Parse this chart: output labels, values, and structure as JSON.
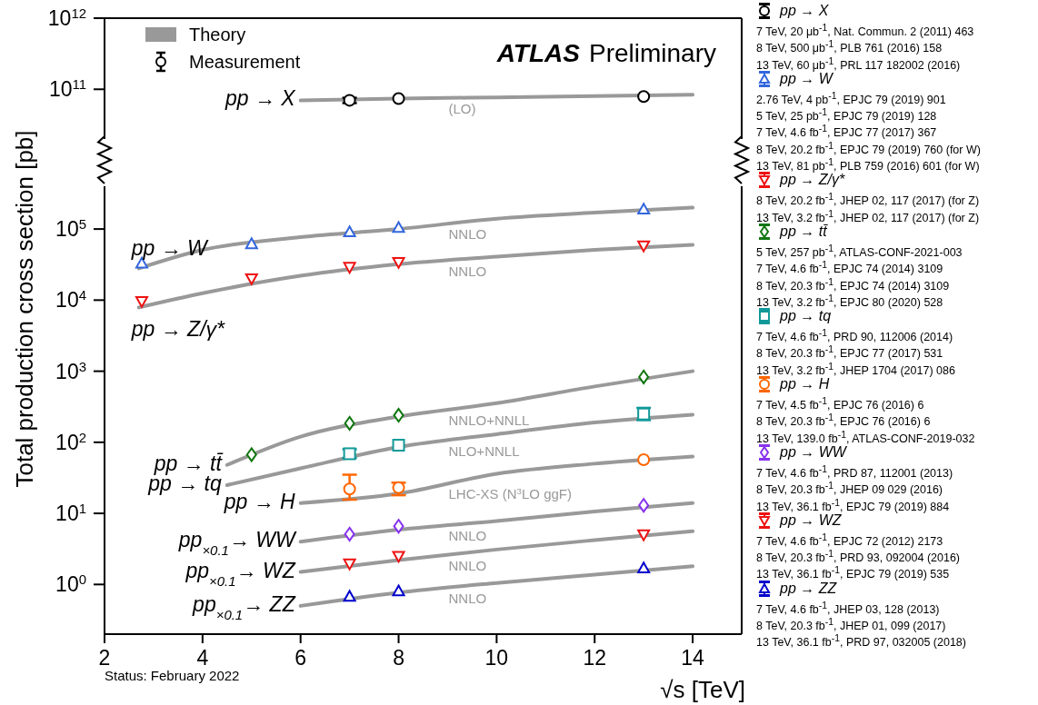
{
  "chart_data": [
    {
      "type": "line",
      "title": "ATLAS Preliminary",
      "xlim": [
        2,
        15
      ],
      "xticks": [
        2,
        4,
        6,
        8,
        10,
        12,
        14
      ],
      "ylim": [
        20000000000,
        1000000000000
      ],
      "yticks": [
        {
          "value": 100000000000,
          "label": "10$^{11}$"
        },
        {
          "value": 1000000000000,
          "label": "10$^{12}$"
        }
      ],
      "log": true,
      "tick_labels": "y",
      "legend": "right",
      "annotations": [
        "pp → X",
        "(LO)",
        "Theory",
        "Measurement"
      ],
      "series": [
        {
          "color": "#999999",
          "x": [
            6,
            8,
            10,
            12,
            14
          ],
          "values": [
            70000000000,
            74000000000,
            77000000000,
            80000000000,
            84000000000
          ]
        },
        {
          "type": "scatter",
          "name": "pp → X",
          "color": "#000000",
          "marker": "circle",
          "x": [
            7,
            8,
            13
          ],
          "values": [
            70000000000,
            74000000000,
            79000000000
          ],
          "errors": [
            [
              64000000000,
              76000000000
            ],
            null,
            null
          ]
        }
      ]
    },
    {
      "type": "line",
      "xlabel": "√s  [TeV]",
      "ylabel": "Total production cross section  [pb]",
      "xlim": [
        2,
        15
      ],
      "xticks": [
        2,
        4,
        6,
        8,
        10,
        12,
        14
      ],
      "ylim": [
        0.2,
        400000
      ],
      "yticks": [
        {
          "value": 1,
          "label": "10$^{0}$"
        },
        {
          "value": 10,
          "label": "10$^{1}$"
        },
        {
          "value": 100,
          "label": "10$^{2}$"
        },
        {
          "value": 1000,
          "label": "10$^{3}$"
        },
        {
          "value": 10000,
          "label": "10$^{4}$"
        },
        {
          "value": 100000,
          "label": "10$^{5}$"
        }
      ],
      "log": true,
      "legend": "right",
      "annotations": [
        "pp → W",
        "NNLO",
        "pp → Z/γ*",
        "NNLO",
        "pp → tt̄",
        "NNLO+NNLL",
        "pp → tq",
        "NLO+NNLL",
        "pp → H",
        "LHC-XS (N$^{3}$LO ggF)",
        "pp$_{×0.1}$→ WW",
        "NNLO",
        "pp$_{×0.1}$→ WZ",
        "NNLO",
        "pp$_{×0.1}$→ ZZ",
        "NNLO",
        "Status: February 2022"
      ],
      "series": [
        {
          "color": "#999999",
          "x": [
            2.7,
            4,
            6,
            8,
            10,
            12,
            14
          ],
          "values": [
            28000,
            51000,
            77000,
            100000,
            140000,
            170000,
            200000
          ]
        },
        {
          "type": "scatter",
          "name": "pp → W",
          "color": "#3366dd",
          "marker": "triangle",
          "x": [
            2.76,
            5,
            7,
            8,
            13
          ],
          "values": [
            33000,
            62000,
            91000,
            105000,
            190000
          ]
        },
        {
          "color": "#999999",
          "x": [
            2.7,
            4,
            6,
            8,
            10,
            12,
            14
          ],
          "values": [
            7900,
            12500,
            22000,
            32000,
            41000,
            51000,
            60000
          ]
        },
        {
          "type": "scatter",
          "name": "pp → Z/γ*",
          "color": "#ee1111",
          "marker": "triangle-down",
          "x": [
            2.76,
            5,
            7,
            8,
            13
          ],
          "values": [
            9600,
            20000,
            29000,
            34000,
            58000
          ]
        },
        {
          "color": "#999999",
          "x": [
            4.5,
            6,
            8,
            10,
            12,
            14
          ],
          "values": [
            48,
            120,
            230,
            355,
            610,
            1000
          ]
        },
        {
          "type": "scatter",
          "name": "pp → tt̄",
          "color": "#117711",
          "marker": "diamond",
          "x": [
            5,
            7,
            8,
            13
          ],
          "values": [
            67,
            185,
            240,
            830
          ]
        },
        {
          "color": "#999999",
          "x": [
            4.5,
            6,
            8,
            10,
            12,
            14
          ],
          "values": [
            25,
            43,
            86,
            130,
            190,
            245
          ]
        },
        {
          "type": "scatter",
          "name": "pp → tq",
          "color": "#119999",
          "marker": "square",
          "x": [
            7,
            8,
            13
          ],
          "values": [
            69,
            91,
            250
          ],
          "errors": [
            [
              60,
              80
            ],
            null,
            [
              205,
              305
            ]
          ]
        },
        {
          "color": "#999999",
          "x": [
            6,
            8,
            10,
            12,
            14
          ],
          "values": [
            14,
            19,
            36,
            50,
            63
          ]
        },
        {
          "type": "scatter",
          "name": "pp → H",
          "color": "#ff6600",
          "marker": "circle",
          "x": [
            7,
            8,
            13
          ],
          "values": [
            22,
            23,
            57
          ],
          "errors": [
            [
              15.6,
              35
            ],
            [
              18,
              27
            ],
            null
          ]
        },
        {
          "color": "#999999",
          "x": [
            6,
            8,
            10,
            12,
            14
          ],
          "values": [
            4.0,
            5.9,
            7.8,
            10.6,
            14
          ]
        },
        {
          "type": "scatter",
          "name": "pp → WW",
          "color": "#8833ee",
          "marker": "diamond",
          "x": [
            7,
            8,
            13
          ],
          "values": [
            5.1,
            6.6,
            13
          ]
        },
        {
          "color": "#999999",
          "x": [
            6,
            8,
            10,
            12,
            14
          ],
          "values": [
            1.5,
            2.2,
            3.1,
            4.2,
            5.6
          ]
        },
        {
          "type": "scatter",
          "name": "pp → WZ",
          "color": "#ee1111",
          "marker": "triangle-down",
          "x": [
            7,
            8,
            13
          ],
          "values": [
            1.95,
            2.5,
            5.0
          ]
        },
        {
          "color": "#999999",
          "x": [
            6,
            8,
            10,
            12,
            14
          ],
          "values": [
            0.5,
            0.77,
            1.05,
            1.37,
            1.8
          ]
        },
        {
          "type": "scatter",
          "name": "pp → ZZ",
          "color": "#0000cc",
          "marker": "triangle",
          "x": [
            7,
            8,
            13
          ],
          "values": [
            0.68,
            0.81,
            1.7
          ]
        }
      ]
    },
    {
      "type": "other",
      "annotations": [
        "7 TeV, 20 μb$^{-1}$, Nat. Commun. 2 (2011) 463",
        "8 TeV, 500 μb$^{-1}$, PLB 761 (2016) 158",
        "13 TeV, 60 μb$^{-1}$, PRL 117 182002 (2016)"
      ]
    },
    {
      "type": "other",
      "annotations": [
        "2.76 TeV, 4 pb$^{-1}$, EPJC 79 (2019) 901",
        "5 TeV, 25 pb$^{-1}$, EPJC 79 (2019) 128",
        "7 TeV, 4.6 fb$^{-1}$, EPJC 77 (2017) 367",
        "8 TeV, 20.2 fb$^{-1}$, EPJC 79 (2019) 760 (for W)",
        "13 TeV, 81 pb$^{-1}$, PLB 759 (2016) 601 (for W)"
      ]
    },
    {
      "type": "other",
      "annotations": [
        "8 TeV, 20.2 fb$^{-1}$, JHEP 02, 117 (2017) (for Z)",
        "13 TeV, 3.2 fb$^{-1}$, JHEP 02, 117 (2017) (for Z)"
      ]
    },
    {
      "type": "other",
      "annotations": [
        "5 TeV, 257 pb$^{-1}$, ATLAS-CONF-2021-003",
        "7 TeV, 4.6 fb$^{-1}$, EPJC 74 (2014) 3109",
        "8 TeV, 20.3 fb$^{-1}$, EPJC 74 (2014) 3109",
        "13 TeV, 3.2 fb$^{-1}$, EPJC 80 (2020) 528"
      ]
    },
    {
      "type": "other",
      "annotations": [
        "7 TeV, 4.6 fb$^{-1}$, PRD 90, 112006 (2014)",
        "8 TeV, 20.3 fb$^{-1}$, EPJC 77 (2017) 531",
        "13 TeV, 3.2 fb$^{-1}$, JHEP 1704 (2017) 086"
      ]
    },
    {
      "type": "other",
      "annotations": [
        "7 TeV, 4.5 fb$^{-1}$, EPJC 76 (2016) 6",
        "8 TeV, 20.3 fb$^{-1}$, EPJC 76 (2016) 6",
        "13 TeV, 139.0 fb$^{-1}$, ATLAS-CONF-2019-032"
      ]
    },
    {
      "type": "other",
      "annotations": [
        "7 TeV, 4.6 fb$^{-1}$, PRD 87, 112001 (2013)",
        "8 TeV, 20.3 fb$^{-1}$, JHEP 09 029 (2016)",
        "13 TeV, 36.1 fb$^{-1}$, EPJC 79 (2019) 884"
      ]
    },
    {
      "type": "other",
      "annotations": [
        "7 TeV, 4.6 fb$^{-1}$, EPJC 72 (2012) 2173",
        "8 TeV, 20.3 fb$^{-1}$, PRD 93, 092004 (2016)",
        "13 TeV, 36.1 fb$^{-1}$, EPJC 79 (2019) 535"
      ]
    },
    {
      "type": "other",
      "annotations": [
        "7 TeV, 4.6 fb$^{-1}$, JHEP 03, 128 (2013)",
        "8 TeV, 20.3 fb$^{-1}$, JHEP 01, 099 (2017)",
        "13 TeV, 36.1 fb$^{-1}$, PRD 97, 032005 (2018)"
      ]
    }
  ]
}
